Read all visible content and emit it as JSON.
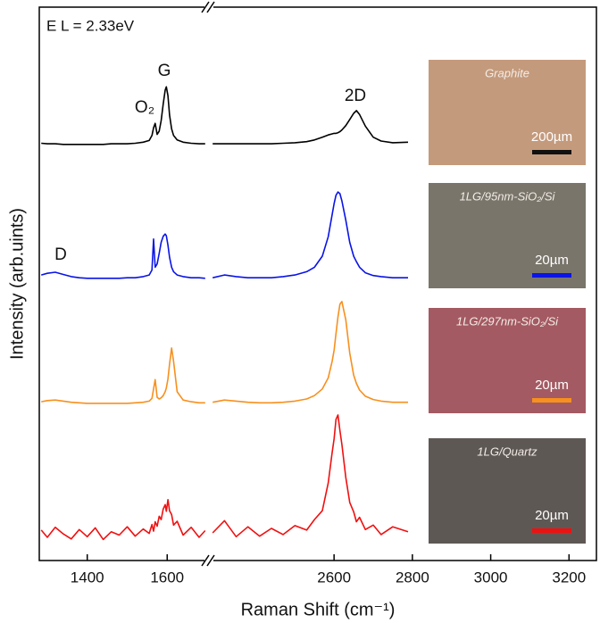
{
  "chart_data": {
    "type": "line",
    "x_label": "Raman Shift (cm⁻¹)",
    "y_label": "Intensity (arb.uints)",
    "annotations": [
      "E L = 2.33eV",
      "G",
      "O₂",
      "2D",
      "D"
    ],
    "xlim": [
      1280,
      3270
    ],
    "xbreak": [
      1700,
      2285
    ],
    "xticks": [
      1400,
      1600,
      2600,
      2800,
      3000,
      3200
    ],
    "ylim": [
      0,
      100
    ],
    "x": [
      1285,
      1300,
      1320,
      1340,
      1360,
      1380,
      1400,
      1420,
      1440,
      1460,
      1480,
      1500,
      1520,
      1540,
      1555,
      1562,
      1566,
      1570,
      1575,
      1580,
      1585,
      1590,
      1595,
      1598,
      1602,
      1606,
      1611,
      1616,
      1625,
      1640,
      1660,
      1680,
      1695,
      1700,
      2290,
      2320,
      2350,
      2380,
      2410,
      2440,
      2470,
      2500,
      2530,
      2550,
      2570,
      2585,
      2595,
      2600,
      2605,
      2610,
      2615,
      2620,
      2630,
      2640,
      2650,
      2657,
      2665,
      2680,
      2700,
      2720,
      2750,
      2789
    ],
    "series": [
      {
        "color": "#000000",
        "values": [
          75.4,
          75.3,
          75.3,
          75.2,
          75.2,
          75.2,
          75.2,
          75.2,
          75.2,
          75.3,
          75.3,
          75.3,
          75.4,
          75.6,
          75.9,
          76.8,
          78.2,
          79.0,
          77.0,
          77.6,
          79.5,
          82.5,
          85.0,
          85.6,
          84.0,
          80.5,
          78.0,
          76.8,
          76.0,
          75.6,
          75.4,
          75.3,
          75.3,
          null,
          75.3,
          75.3,
          75.3,
          75.3,
          75.3,
          75.3,
          75.4,
          75.5,
          75.7,
          76.0,
          76.5,
          76.9,
          77.1,
          77.2,
          77.2,
          77.3,
          77.5,
          77.8,
          78.6,
          79.7,
          80.8,
          81.3,
          80.6,
          78.5,
          76.5,
          75.8,
          75.5,
          75.6
        ]
      },
      {
        "color": "#0a14e6",
        "values": [
          51.6,
          51.9,
          52.1,
          51.7,
          51.3,
          51.1,
          51.0,
          51.0,
          51.0,
          51.0,
          51.0,
          51.1,
          51.1,
          51.3,
          51.6,
          52.5,
          58.1,
          53.0,
          53.6,
          55.5,
          57.5,
          58.6,
          59.0,
          58.7,
          57.0,
          54.8,
          53.0,
          52.2,
          51.6,
          51.3,
          51.1,
          51.1,
          51.0,
          null,
          51.1,
          51.6,
          51.3,
          51.1,
          51.1,
          51.1,
          51.3,
          51.6,
          52.2,
          53.0,
          55.0,
          58.5,
          62.5,
          64.5,
          66.0,
          66.6,
          66.3,
          65.0,
          61.5,
          57.5,
          55.0,
          54.0,
          53.0,
          52.0,
          51.5,
          51.3,
          51.1,
          51.1
        ]
      },
      {
        "color": "#f7901e",
        "values": [
          28.7,
          28.9,
          29.0,
          28.8,
          28.6,
          28.5,
          28.4,
          28.4,
          28.4,
          28.4,
          28.4,
          28.4,
          28.5,
          28.6,
          28.8,
          29.3,
          31.0,
          32.7,
          29.5,
          29.2,
          29.4,
          29.8,
          30.5,
          31.2,
          32.8,
          35.5,
          38.4,
          36.0,
          30.5,
          29.0,
          28.7,
          28.5,
          28.5,
          null,
          28.6,
          29.0,
          28.8,
          28.6,
          28.5,
          28.5,
          28.6,
          28.8,
          29.2,
          29.8,
          31.0,
          33.0,
          36.0,
          38.0,
          41.0,
          44.0,
          46.3,
          46.8,
          43.5,
          37.5,
          33.5,
          32.0,
          30.8,
          29.7,
          29.1,
          28.8,
          28.6,
          28.6
        ]
      },
      {
        "color": "#f01010",
        "values": [
          5.5,
          4.2,
          6.0,
          4.8,
          3.9,
          5.6,
          4.3,
          5.9,
          3.8,
          5.2,
          4.6,
          6.1,
          4.4,
          5.7,
          4.9,
          6.5,
          5.3,
          7.0,
          6.2,
          8.0,
          7.4,
          9.3,
          10.1,
          8.9,
          11.0,
          9.0,
          8.3,
          6.4,
          7.1,
          4.6,
          6.0,
          4.2,
          5.4,
          null,
          5.0,
          7.2,
          4.3,
          6.1,
          4.4,
          5.8,
          4.7,
          6.3,
          5.5,
          7.4,
          9.0,
          14.0,
          19.5,
          22.0,
          25.5,
          26.3,
          23.5,
          21.0,
          15.0,
          10.5,
          8.8,
          7.0,
          7.8,
          5.6,
          6.4,
          4.7,
          6.1,
          5.2
        ]
      }
    ],
    "insets": [
      {
        "label": "Graphite",
        "scale": "200µm",
        "bar_color": "#111111",
        "background": "#c49a7c"
      },
      {
        "label": "1LG/95nm-SiO₂/Si",
        "scale": "20µm",
        "bar_color": "#0a14e6",
        "background": "#79756b"
      },
      {
        "label": "1LG/297nm-SiO₂/Si",
        "scale": "20µm",
        "bar_color": "#f7901e",
        "background": "#a45a62"
      },
      {
        "label": "1LG/Quartz",
        "scale": "20µm",
        "bar_color": "#f01010",
        "background": "#5e5855"
      }
    ]
  }
}
